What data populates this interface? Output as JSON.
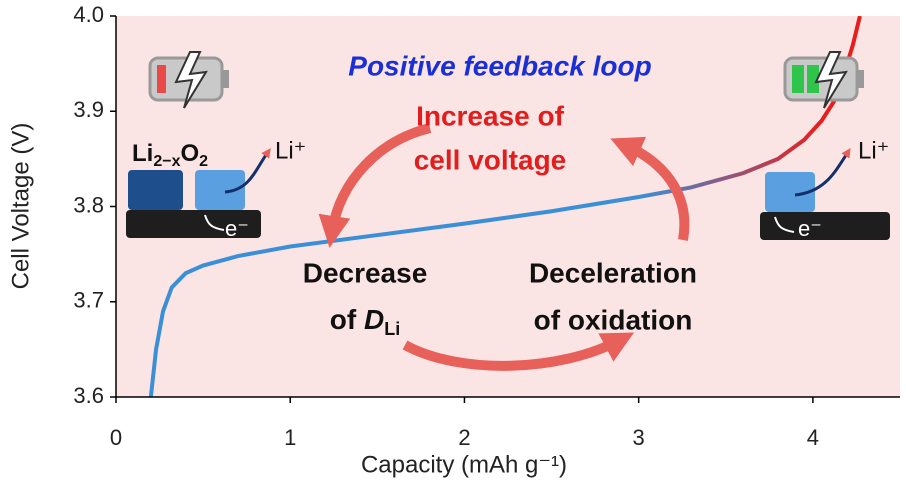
{
  "chart_data": {
    "type": "line",
    "x_label": "Capacity (mAh g⁻¹)",
    "y_label": "Cell Voltage (V)",
    "series": [
      {
        "x": [
          0.2,
          0.23,
          0.27,
          0.32,
          0.4,
          0.5,
          0.7,
          1.0,
          1.5,
          2.0,
          2.5,
          3.0,
          3.3,
          3.6,
          3.8,
          3.95,
          4.05,
          4.12,
          4.18,
          4.23,
          4.27
        ],
        "values": [
          3.6,
          3.65,
          3.69,
          3.715,
          3.73,
          3.738,
          3.748,
          3.758,
          3.77,
          3.782,
          3.795,
          3.81,
          3.82,
          3.835,
          3.85,
          3.87,
          3.89,
          3.91,
          3.94,
          3.97,
          4.0
        ],
        "colors": [
          "#3a8fd6",
          "#e81e1e"
        ]
      }
    ],
    "xlim": [
      0,
      4.5
    ],
    "xticks": [
      0,
      1,
      2,
      3,
      4
    ],
    "ylim": [
      3.6,
      4.0
    ],
    "yticks": [
      3.6,
      3.7,
      3.8,
      3.9,
      {
        "value": 4.0,
        "label": "4.0"
      }
    ],
    "background": "#fbe4e4",
    "annotations": {
      "loop_title": "Positive feedback loop",
      "increase_1": "Increase of",
      "increase_2": "cell voltage",
      "decrease_1": "Decrease",
      "decrease_2": "of ",
      "decrease_d": "D",
      "decrease_sub": "Li",
      "decel_1": "Deceleration",
      "decel_2": "of oxidation",
      "oxide_li": "Li",
      "oxide_sub1": "2−x",
      "oxide_o": "O",
      "oxide_sub2": "2",
      "li_ion_left": "Li⁺",
      "electron_left": "e⁻",
      "li_ion_right": "Li⁺",
      "electron_right": "e⁻"
    }
  }
}
